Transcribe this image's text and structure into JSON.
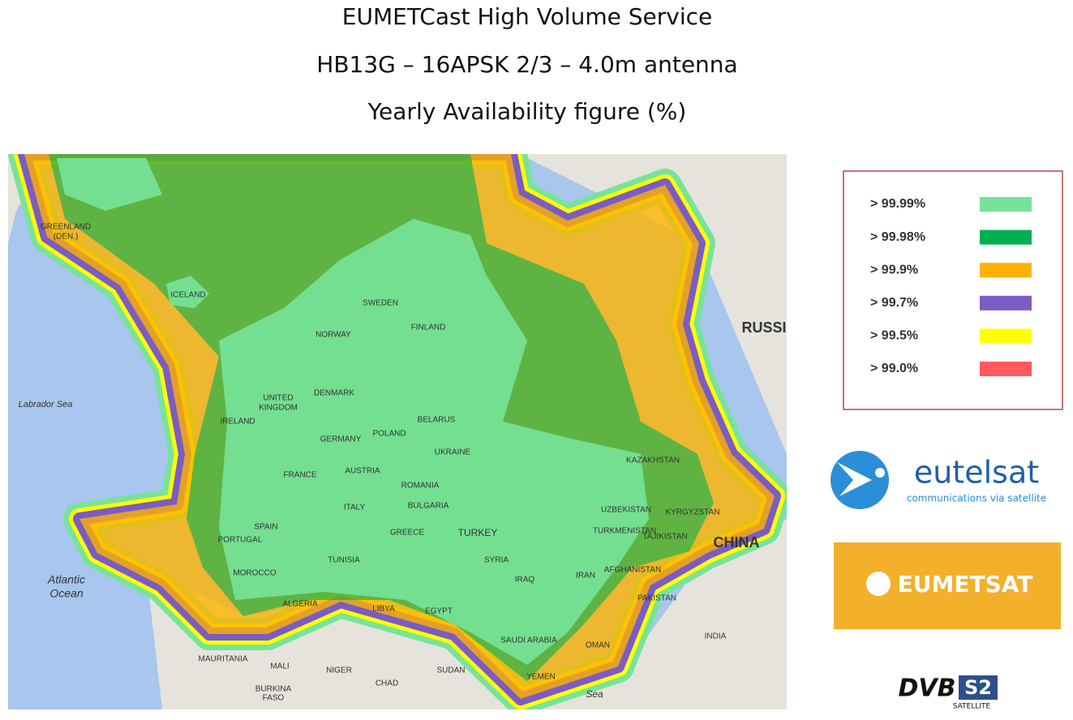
{
  "title": [
    "EUMETCast High Volume Service",
    "HB13G – 16APSK 2/3 – 4.0m antenna",
    "Yearly Availability figure (%)"
  ],
  "legend": [
    {
      "label": "> 99.99%",
      "color": "#77e39a"
    },
    {
      "label": "> 99.98%",
      "color": "#00b050"
    },
    {
      "label": "> 99.9%",
      "color": "#ffb300"
    },
    {
      "label": "> 99.7%",
      "color": "#7b5cc4"
    },
    {
      "label": "> 99.5%",
      "color": "#ffff00"
    },
    {
      "label": "> 99.0%",
      "color": "#ff5a5f"
    }
  ],
  "map_labels": [
    "GREENLAND",
    "(DEN.)",
    "ICELAND",
    "SWEDEN",
    "FINLAND",
    "NORWAY",
    "RUSSI",
    "Labrador Sea",
    "UNITED",
    "KINGDOM",
    "DENMARK",
    "IRELAND",
    "BELARUS",
    "POLAND",
    "GERMANY",
    "UKRAINE",
    "KAZAKHSTAN",
    "FRANCE",
    "AUSTRIA",
    "ROMANIA",
    "ITALY",
    "BULGARIA",
    "KYRGYZSTAN",
    "UZBEKISTAN",
    "SPAIN",
    "TURKMENISTAN",
    "PORTUGAL",
    "GREECE",
    "TURKEY",
    "CHINA",
    "TAJIKISTAN",
    "SYRIA",
    "TUNISIA",
    "AFGHANISTAN",
    "MOROCCO",
    "IRAQ",
    "IRAN",
    "Atlantic",
    "Ocean",
    "ALGERIA",
    "LIBYA",
    "EGYPT",
    "PAKISTAN",
    "INDIA",
    "SAUDI ARABIA",
    "OMAN",
    "MAURITANIA",
    "MALI",
    "NIGER",
    "SUDAN",
    "CHAD",
    "YEMEN",
    "Sea",
    "BURKINA",
    "FASO"
  ],
  "logos": {
    "eutelsat": "eutelsat",
    "eutelsat_tagline": "communications via satellite",
    "eumetsat": "EUMETSAT",
    "dvb": "DVB",
    "s2": "S2",
    "dvb_sub": "SATELLITE"
  }
}
